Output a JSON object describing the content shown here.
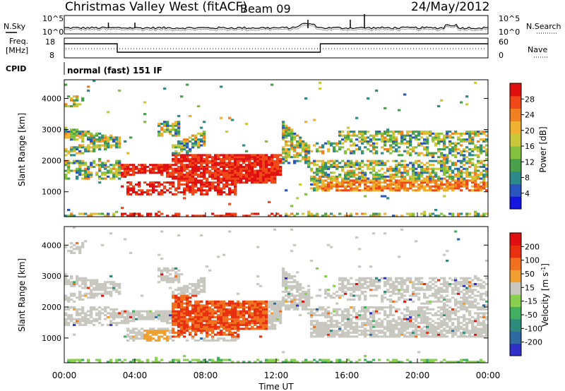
{
  "header": {
    "title": "Christmas Valley West (fitACF)",
    "beam": "Beam 09",
    "date": "24/May/2012"
  },
  "top_strip": {
    "nsky_label": "N.Sky",
    "nsearch_label": "N.Search",
    "left_ticks": [
      "10^5",
      "10^0"
    ],
    "right_ticks": [
      "10^5",
      "10^0"
    ]
  },
  "freq_strip": {
    "freq_label": [
      "Freq.",
      "[MHz]"
    ],
    "nave_label": "Nave",
    "left_ticks": [
      "18",
      "8"
    ],
    "right_ticks": [
      "60",
      "0"
    ]
  },
  "cpid": {
    "label": "CPID",
    "program": "normal (fast) 151 IF"
  },
  "chart_data": [
    {
      "type": "heatmap",
      "name": "power",
      "ylabel": "Slant Range [km]",
      "yticks": [
        1000,
        2000,
        3000,
        4000
      ],
      "ylim": [
        200,
        4600
      ],
      "xlim": [
        0,
        24
      ],
      "colorbar": {
        "label": "Power [dB]",
        "ticks": [
          4,
          8,
          12,
          16,
          20,
          24,
          28
        ],
        "range": [
          0,
          32
        ],
        "colors": [
          "#1515e0",
          "#2a55c0",
          "#2e8a8a",
          "#4aa04a",
          "#86c040",
          "#c8c83a",
          "#f0b030",
          "#f08020",
          "#f04818",
          "#e01010"
        ]
      }
    },
    {
      "type": "heatmap",
      "name": "velocity",
      "ylabel": "Slant Range [km]",
      "xlabel": "Time UT",
      "yticks": [
        1000,
        2000,
        3000,
        4000
      ],
      "ylim": [
        200,
        4600
      ],
      "xlim": [
        0,
        24
      ],
      "xticks": [
        "00:00",
        "04:00",
        "08:00",
        "12:00",
        "16:00",
        "20:00",
        "00:00"
      ],
      "colorbar": {
        "label": "Velocity [m s",
        "label_exp": "-1",
        "label_end": "]",
        "ticks": [
          200,
          100,
          50,
          15,
          -15,
          -50,
          -100,
          -200
        ],
        "colors": [
          "#3030c8",
          "#2e6aa0",
          "#2e8a7a",
          "#40b060",
          "#8ad050",
          "#c8c8c0",
          "#f0a030",
          "#f07020",
          "#e83010",
          "#e01010"
        ]
      }
    }
  ]
}
